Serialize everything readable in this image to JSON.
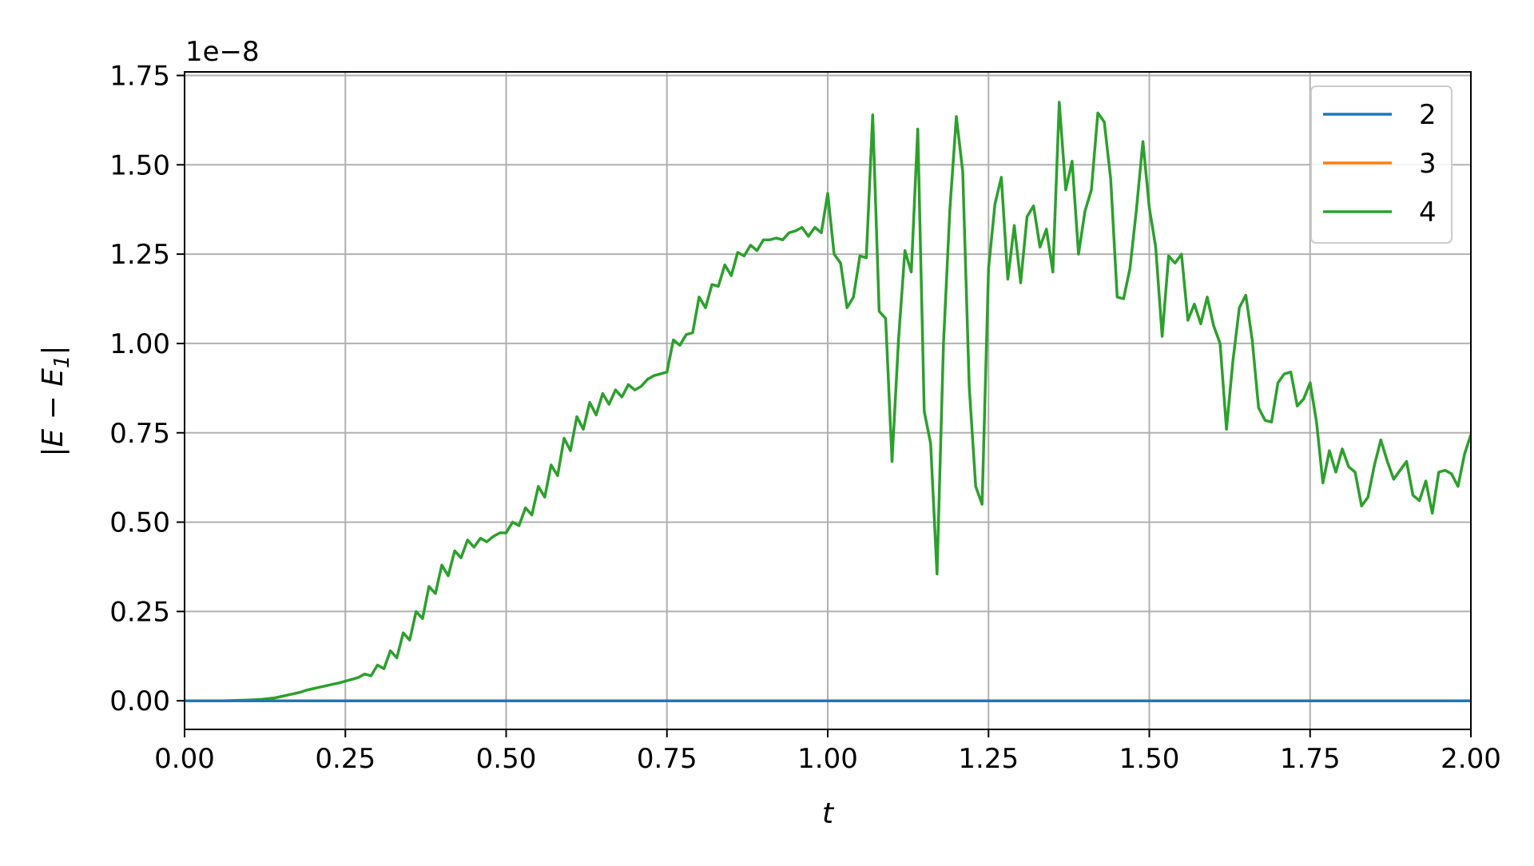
{
  "chart_data": {
    "type": "line",
    "xlabel": "t",
    "ylabel": "|E − E1|",
    "ylabel_base": "|E − E",
    "ylabel_sub": "1",
    "ylabel_tail": "|",
    "offset_text": "1e−8",
    "xlim": [
      0.0,
      2.0
    ],
    "ylim": [
      -0.08,
      1.76
    ],
    "grid": true,
    "legend_position": "top-right",
    "x_ticks": [
      0.0,
      0.25,
      0.5,
      0.75,
      1.0,
      1.25,
      1.5,
      1.75,
      2.0
    ],
    "x_tick_labels": [
      "0.00",
      "0.25",
      "0.50",
      "0.75",
      "1.00",
      "1.25",
      "1.50",
      "1.75",
      "2.00"
    ],
    "y_ticks": [
      0.0,
      0.25,
      0.5,
      0.75,
      1.0,
      1.25,
      1.5,
      1.75
    ],
    "y_tick_labels": [
      "0.00",
      "0.25",
      "0.50",
      "0.75",
      "1.00",
      "1.25",
      "1.50",
      "1.75"
    ],
    "series": [
      {
        "name": "2",
        "color": "#1f77b4",
        "x": [
          0.0,
          2.0
        ],
        "y": [
          0.0,
          0.0
        ]
      },
      {
        "name": "3",
        "color": "#ff7f0e",
        "x": [
          0.0,
          2.0
        ],
        "y": [
          0.0,
          0.0
        ]
      },
      {
        "name": "4",
        "color": "#2ca02c",
        "x": [
          0.0,
          0.02,
          0.04,
          0.06,
          0.08,
          0.1,
          0.11,
          0.12,
          0.13,
          0.14,
          0.15,
          0.16,
          0.17,
          0.18,
          0.19,
          0.2,
          0.21,
          0.22,
          0.23,
          0.24,
          0.25,
          0.26,
          0.27,
          0.28,
          0.29,
          0.3,
          0.31,
          0.32,
          0.33,
          0.34,
          0.35,
          0.36,
          0.37,
          0.38,
          0.39,
          0.4,
          0.41,
          0.42,
          0.43,
          0.44,
          0.45,
          0.46,
          0.47,
          0.48,
          0.49,
          0.5,
          0.51,
          0.52,
          0.53,
          0.54,
          0.55,
          0.56,
          0.57,
          0.58,
          0.59,
          0.6,
          0.61,
          0.62,
          0.63,
          0.64,
          0.65,
          0.66,
          0.67,
          0.68,
          0.69,
          0.7,
          0.71,
          0.72,
          0.73,
          0.74,
          0.75,
          0.76,
          0.77,
          0.78,
          0.79,
          0.8,
          0.81,
          0.82,
          0.83,
          0.84,
          0.85,
          0.86,
          0.87,
          0.88,
          0.89,
          0.9,
          0.91,
          0.92,
          0.93,
          0.94,
          0.95,
          0.96,
          0.97,
          0.98,
          0.99,
          1.0,
          1.01,
          1.02,
          1.03,
          1.04,
          1.05,
          1.06,
          1.07,
          1.08,
          1.09,
          1.1,
          1.11,
          1.12,
          1.13,
          1.14,
          1.15,
          1.16,
          1.17,
          1.18,
          1.19,
          1.2,
          1.21,
          1.22,
          1.23,
          1.24,
          1.25,
          1.26,
          1.27,
          1.28,
          1.29,
          1.3,
          1.31,
          1.32,
          1.33,
          1.34,
          1.35,
          1.36,
          1.37,
          1.38,
          1.39,
          1.4,
          1.41,
          1.42,
          1.43,
          1.44,
          1.45,
          1.46,
          1.47,
          1.48,
          1.49,
          1.5,
          1.51,
          1.52,
          1.53,
          1.54,
          1.55,
          1.56,
          1.57,
          1.58,
          1.59,
          1.6,
          1.61,
          1.62,
          1.63,
          1.64,
          1.65,
          1.66,
          1.67,
          1.68,
          1.69,
          1.7,
          1.71,
          1.72,
          1.73,
          1.74,
          1.75,
          1.76,
          1.77,
          1.78,
          1.79,
          1.8,
          1.81,
          1.82,
          1.83,
          1.84,
          1.85,
          1.86,
          1.87,
          1.88,
          1.89,
          1.9,
          1.91,
          1.92,
          1.93,
          1.94,
          1.95,
          1.96,
          1.97,
          1.98,
          1.99,
          2.0
        ],
        "y": [
          0.0,
          0.0,
          0.0,
          0.0,
          0.001,
          0.002,
          0.003,
          0.004,
          0.006,
          0.008,
          0.012,
          0.016,
          0.02,
          0.024,
          0.03,
          0.034,
          0.038,
          0.042,
          0.046,
          0.05,
          0.055,
          0.06,
          0.065,
          0.075,
          0.07,
          0.1,
          0.09,
          0.14,
          0.12,
          0.19,
          0.17,
          0.25,
          0.23,
          0.32,
          0.3,
          0.38,
          0.35,
          0.42,
          0.4,
          0.45,
          0.43,
          0.455,
          0.445,
          0.46,
          0.47,
          0.47,
          0.5,
          0.49,
          0.54,
          0.52,
          0.6,
          0.57,
          0.66,
          0.63,
          0.735,
          0.7,
          0.795,
          0.76,
          0.835,
          0.8,
          0.86,
          0.83,
          0.87,
          0.85,
          0.885,
          0.87,
          0.88,
          0.9,
          0.91,
          0.915,
          0.92,
          1.01,
          0.995,
          1.025,
          1.03,
          1.13,
          1.1,
          1.165,
          1.16,
          1.22,
          1.19,
          1.255,
          1.245,
          1.275,
          1.26,
          1.29,
          1.29,
          1.295,
          1.29,
          1.31,
          1.315,
          1.325,
          1.3,
          1.325,
          1.31,
          1.42,
          1.25,
          1.225,
          1.1,
          1.13,
          1.245,
          1.24,
          1.64,
          1.09,
          1.07,
          0.67,
          1.01,
          1.26,
          1.2,
          1.6,
          0.81,
          0.72,
          0.355,
          1.0,
          1.375,
          1.635,
          1.48,
          0.88,
          0.6,
          0.55,
          1.21,
          1.39,
          1.465,
          1.18,
          1.33,
          1.17,
          1.355,
          1.385,
          1.27,
          1.32,
          1.2,
          1.675,
          1.43,
          1.51,
          1.25,
          1.37,
          1.43,
          1.645,
          1.62,
          1.46,
          1.13,
          1.125,
          1.21,
          1.375,
          1.565,
          1.38,
          1.27,
          1.02,
          1.245,
          1.225,
          1.25,
          1.065,
          1.11,
          1.055,
          1.13,
          1.05,
          1.0,
          0.76,
          0.95,
          1.1,
          1.135,
          1.01,
          0.82,
          0.785,
          0.78,
          0.89,
          0.915,
          0.92,
          0.825,
          0.845,
          0.89,
          0.78,
          0.61,
          0.7,
          0.64,
          0.705,
          0.655,
          0.64,
          0.545,
          0.57,
          0.66,
          0.73,
          0.67,
          0.62,
          0.645,
          0.67,
          0.575,
          0.56,
          0.615,
          0.525,
          0.64,
          0.645,
          0.635,
          0.6,
          0.69,
          0.745
        ]
      }
    ]
  }
}
